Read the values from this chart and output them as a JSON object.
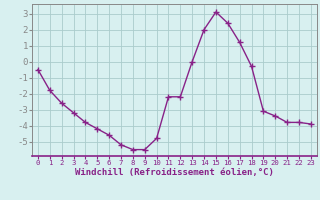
{
  "x": [
    0,
    1,
    2,
    3,
    4,
    5,
    6,
    7,
    8,
    9,
    10,
    11,
    12,
    13,
    14,
    15,
    16,
    17,
    18,
    19,
    20,
    21,
    22,
    23
  ],
  "y": [
    -0.5,
    -1.8,
    -2.6,
    -3.2,
    -3.8,
    -4.2,
    -4.6,
    -5.2,
    -5.5,
    -5.5,
    -4.8,
    -2.2,
    -2.2,
    0.0,
    2.0,
    3.1,
    2.4,
    1.2,
    -0.3,
    -3.1,
    -3.4,
    -3.8,
    -3.8,
    -3.9
  ],
  "line_color": "#882288",
  "marker": "+",
  "marker_size": 4,
  "marker_lw": 1.0,
  "bg_color": "#d8f0f0",
  "grid_color": "#aacccc",
  "xlabel": "Windchill (Refroidissement éolien,°C)",
  "ylabel": "",
  "xlim": [
    -0.5,
    23.5
  ],
  "ylim": [
    -5.9,
    3.6
  ],
  "yticks": [
    -5,
    -4,
    -3,
    -2,
    -1,
    0,
    1,
    2,
    3
  ],
  "xticks": [
    0,
    1,
    2,
    3,
    4,
    5,
    6,
    7,
    8,
    9,
    10,
    11,
    12,
    13,
    14,
    15,
    16,
    17,
    18,
    19,
    20,
    21,
    22,
    23
  ],
  "font_color": "#882288",
  "label_bg_color": "#c8d8e8",
  "spine_color": "#888888",
  "line_width": 1.0
}
